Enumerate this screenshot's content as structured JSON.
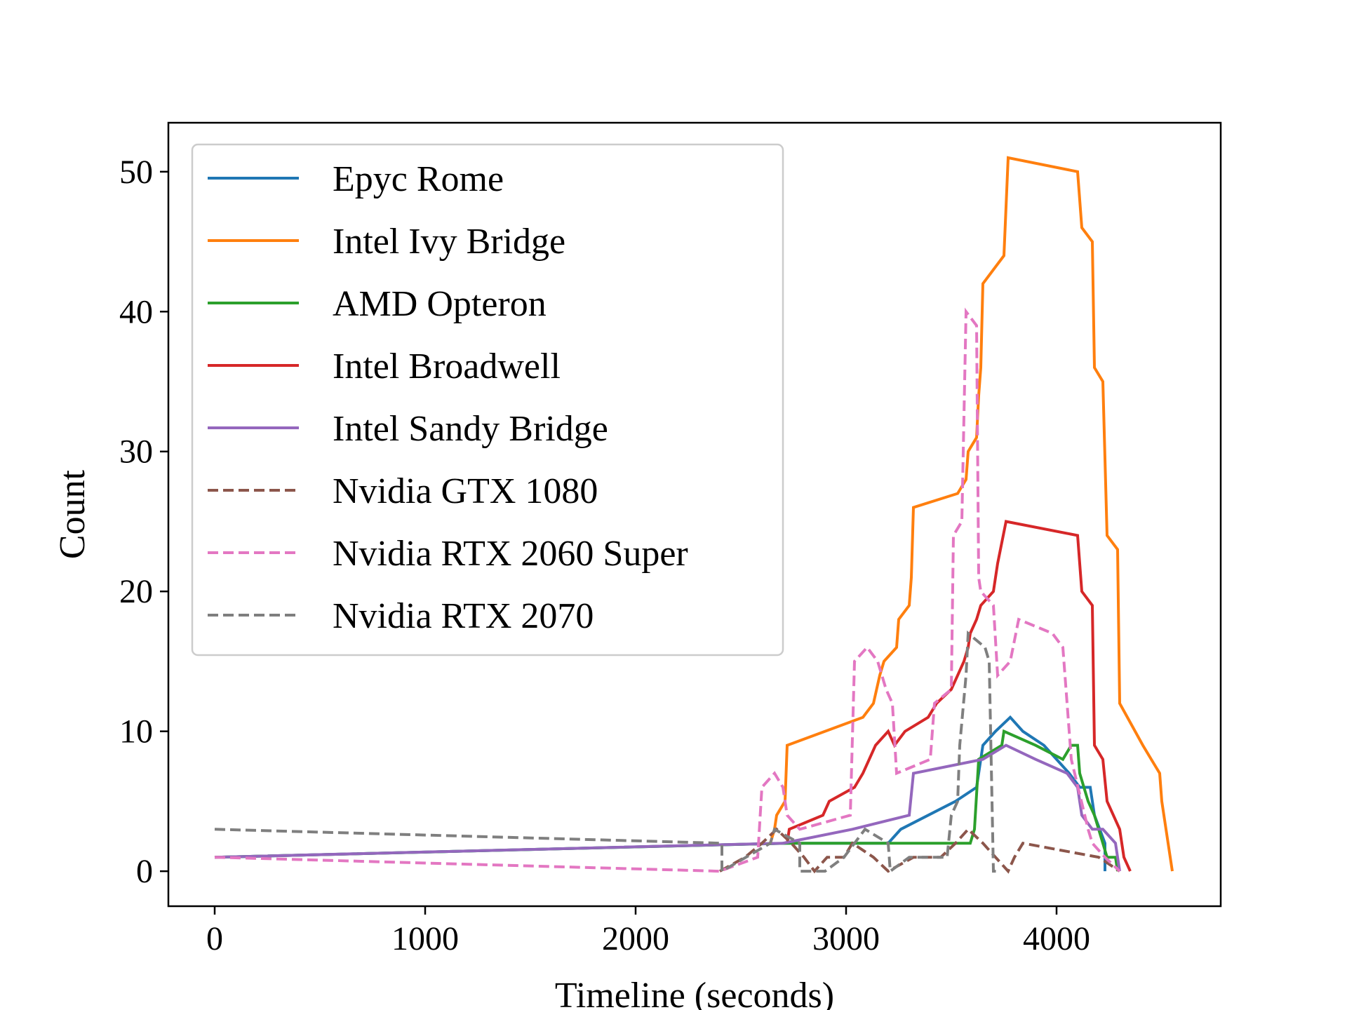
{
  "chart_data": {
    "type": "line",
    "xlabel": "Timeline (seconds)",
    "ylabel": "Count",
    "xlim": [
      -220,
      4780
    ],
    "ylim": [
      -2.5,
      53.5
    ],
    "xticks": [
      0,
      1000,
      2000,
      3000,
      4000
    ],
    "yticks": [
      0,
      10,
      20,
      30,
      40,
      50
    ],
    "legend_position": "top-left",
    "grid": false,
    "series": [
      {
        "name": "Epyc Rome",
        "color": "#1f77b4",
        "dash": "solid",
        "points": [
          [
            0,
            1
          ],
          [
            2720,
            2
          ],
          [
            3200,
            2
          ],
          [
            3260,
            3
          ],
          [
            3520,
            5
          ],
          [
            3620,
            6
          ],
          [
            3650,
            9
          ],
          [
            3710,
            10
          ],
          [
            3780,
            11
          ],
          [
            3840,
            10
          ],
          [
            3940,
            9
          ],
          [
            4060,
            7
          ],
          [
            4110,
            6
          ],
          [
            4160,
            6
          ],
          [
            4180,
            4
          ],
          [
            4230,
            2
          ],
          [
            4230,
            0
          ]
        ]
      },
      {
        "name": "Intel Ivy Bridge",
        "color": "#ff7f0e",
        "dash": "solid",
        "points": [
          [
            2640,
            2
          ],
          [
            2660,
            3
          ],
          [
            2670,
            4
          ],
          [
            2710,
            5
          ],
          [
            2720,
            9
          ],
          [
            3080,
            11
          ],
          [
            3130,
            12
          ],
          [
            3160,
            14
          ],
          [
            3180,
            15
          ],
          [
            3240,
            16
          ],
          [
            3250,
            18
          ],
          [
            3300,
            19
          ],
          [
            3310,
            21
          ],
          [
            3320,
            26
          ],
          [
            3530,
            27
          ],
          [
            3570,
            28
          ],
          [
            3580,
            30
          ],
          [
            3620,
            31
          ],
          [
            3630,
            34
          ],
          [
            3640,
            36
          ],
          [
            3650,
            42
          ],
          [
            3750,
            44
          ],
          [
            3770,
            51
          ],
          [
            4100,
            50
          ],
          [
            4120,
            46
          ],
          [
            4170,
            45
          ],
          [
            4180,
            36
          ],
          [
            4220,
            35
          ],
          [
            4240,
            24
          ],
          [
            4290,
            23
          ],
          [
            4300,
            12
          ],
          [
            4410,
            9
          ],
          [
            4450,
            8
          ],
          [
            4490,
            7
          ],
          [
            4500,
            5
          ],
          [
            4530,
            2
          ],
          [
            4550,
            0
          ]
        ]
      },
      {
        "name": "AMD Opteron",
        "color": "#2ca02c",
        "dash": "solid",
        "points": [
          [
            0,
            1
          ],
          [
            2720,
            2
          ],
          [
            3350,
            2
          ],
          [
            3590,
            2
          ],
          [
            3610,
            3
          ],
          [
            3630,
            8
          ],
          [
            3740,
            9
          ],
          [
            3750,
            10
          ],
          [
            3900,
            9
          ],
          [
            4030,
            8
          ],
          [
            4070,
            9
          ],
          [
            4100,
            9
          ],
          [
            4110,
            7
          ],
          [
            4130,
            6
          ],
          [
            4150,
            5
          ],
          [
            4180,
            4
          ],
          [
            4220,
            2
          ],
          [
            4240,
            1
          ],
          [
            4280,
            1
          ],
          [
            4290,
            0
          ]
        ]
      },
      {
        "name": "Intel Broadwell",
        "color": "#d62728",
        "dash": "solid",
        "points": [
          [
            2720,
            2
          ],
          [
            2730,
            3
          ],
          [
            2890,
            4
          ],
          [
            2920,
            5
          ],
          [
            3040,
            6
          ],
          [
            3080,
            7
          ],
          [
            3110,
            8
          ],
          [
            3140,
            9
          ],
          [
            3200,
            10
          ],
          [
            3230,
            9
          ],
          [
            3280,
            10
          ],
          [
            3390,
            11
          ],
          [
            3430,
            12
          ],
          [
            3500,
            13
          ],
          [
            3530,
            14
          ],
          [
            3560,
            15
          ],
          [
            3580,
            16
          ],
          [
            3590,
            17
          ],
          [
            3620,
            18
          ],
          [
            3640,
            19
          ],
          [
            3700,
            20
          ],
          [
            3720,
            22
          ],
          [
            3760,
            25
          ],
          [
            4100,
            24
          ],
          [
            4120,
            20
          ],
          [
            4170,
            19
          ],
          [
            4180,
            9
          ],
          [
            4220,
            8
          ],
          [
            4240,
            5
          ],
          [
            4300,
            3
          ],
          [
            4320,
            1
          ],
          [
            4350,
            0
          ]
        ]
      },
      {
        "name": "Intel Sandy Bridge",
        "color": "#9467bd",
        "dash": "solid",
        "points": [
          [
            0,
            1
          ],
          [
            2700,
            2
          ],
          [
            3030,
            3
          ],
          [
            3300,
            4
          ],
          [
            3320,
            7
          ],
          [
            3650,
            8
          ],
          [
            3760,
            9
          ],
          [
            3900,
            8
          ],
          [
            4050,
            7
          ],
          [
            4100,
            6
          ],
          [
            4120,
            4
          ],
          [
            4170,
            3
          ],
          [
            4220,
            3
          ],
          [
            4280,
            2
          ],
          [
            4290,
            1
          ],
          [
            4300,
            0
          ]
        ]
      },
      {
        "name": "Nvidia GTX 1080",
        "color": "#8c564b",
        "dash": "dashed",
        "points": [
          [
            2400,
            0
          ],
          [
            2520,
            1
          ],
          [
            2600,
            2
          ],
          [
            2670,
            3
          ],
          [
            2740,
            2
          ],
          [
            2800,
            1
          ],
          [
            2850,
            0
          ],
          [
            2910,
            1
          ],
          [
            2990,
            1
          ],
          [
            3030,
            2
          ],
          [
            3130,
            1
          ],
          [
            3200,
            0
          ],
          [
            3320,
            1
          ],
          [
            3450,
            1
          ],
          [
            3520,
            2
          ],
          [
            3580,
            3
          ],
          [
            3650,
            2
          ],
          [
            3710,
            1
          ],
          [
            3770,
            0
          ],
          [
            3800,
            1
          ],
          [
            3840,
            2
          ],
          [
            4200,
            1
          ],
          [
            4300,
            0
          ]
        ]
      },
      {
        "name": "Nvidia RTX 2060 Super",
        "color": "#e377c2",
        "dash": "dashed",
        "points": [
          [
            0,
            1
          ],
          [
            2400,
            0
          ],
          [
            2580,
            1
          ],
          [
            2600,
            6
          ],
          [
            2660,
            7
          ],
          [
            2700,
            6
          ],
          [
            2720,
            4
          ],
          [
            2780,
            3
          ],
          [
            3020,
            4
          ],
          [
            3040,
            15
          ],
          [
            3100,
            16
          ],
          [
            3150,
            15
          ],
          [
            3190,
            13
          ],
          [
            3220,
            12
          ],
          [
            3240,
            7
          ],
          [
            3400,
            8
          ],
          [
            3420,
            12
          ],
          [
            3500,
            13
          ],
          [
            3510,
            24
          ],
          [
            3550,
            25
          ],
          [
            3570,
            40
          ],
          [
            3620,
            39
          ],
          [
            3630,
            21
          ],
          [
            3640,
            20
          ],
          [
            3700,
            19
          ],
          [
            3720,
            14
          ],
          [
            3780,
            15
          ],
          [
            3820,
            18
          ],
          [
            3980,
            17
          ],
          [
            4030,
            16
          ],
          [
            4070,
            8
          ],
          [
            4150,
            3
          ],
          [
            4170,
            2
          ],
          [
            4230,
            1
          ],
          [
            4300,
            0
          ]
        ]
      },
      {
        "name": "Nvidia RTX 2070",
        "color": "#7f7f7f",
        "dash": "dashed",
        "points": [
          [
            0,
            3
          ],
          [
            2410,
            2
          ],
          [
            2410,
            0
          ],
          [
            2640,
            2
          ],
          [
            2660,
            3
          ],
          [
            2780,
            2
          ],
          [
            2780,
            0
          ],
          [
            2900,
            0
          ],
          [
            2990,
            1
          ],
          [
            3090,
            3
          ],
          [
            3200,
            2
          ],
          [
            3210,
            0
          ],
          [
            3300,
            1
          ],
          [
            3480,
            1
          ],
          [
            3500,
            4
          ],
          [
            3530,
            5
          ],
          [
            3540,
            9
          ],
          [
            3570,
            14
          ],
          [
            3580,
            17
          ],
          [
            3660,
            16
          ],
          [
            3680,
            15
          ],
          [
            3700,
            0
          ],
          [
            3730,
            0
          ]
        ]
      }
    ]
  }
}
